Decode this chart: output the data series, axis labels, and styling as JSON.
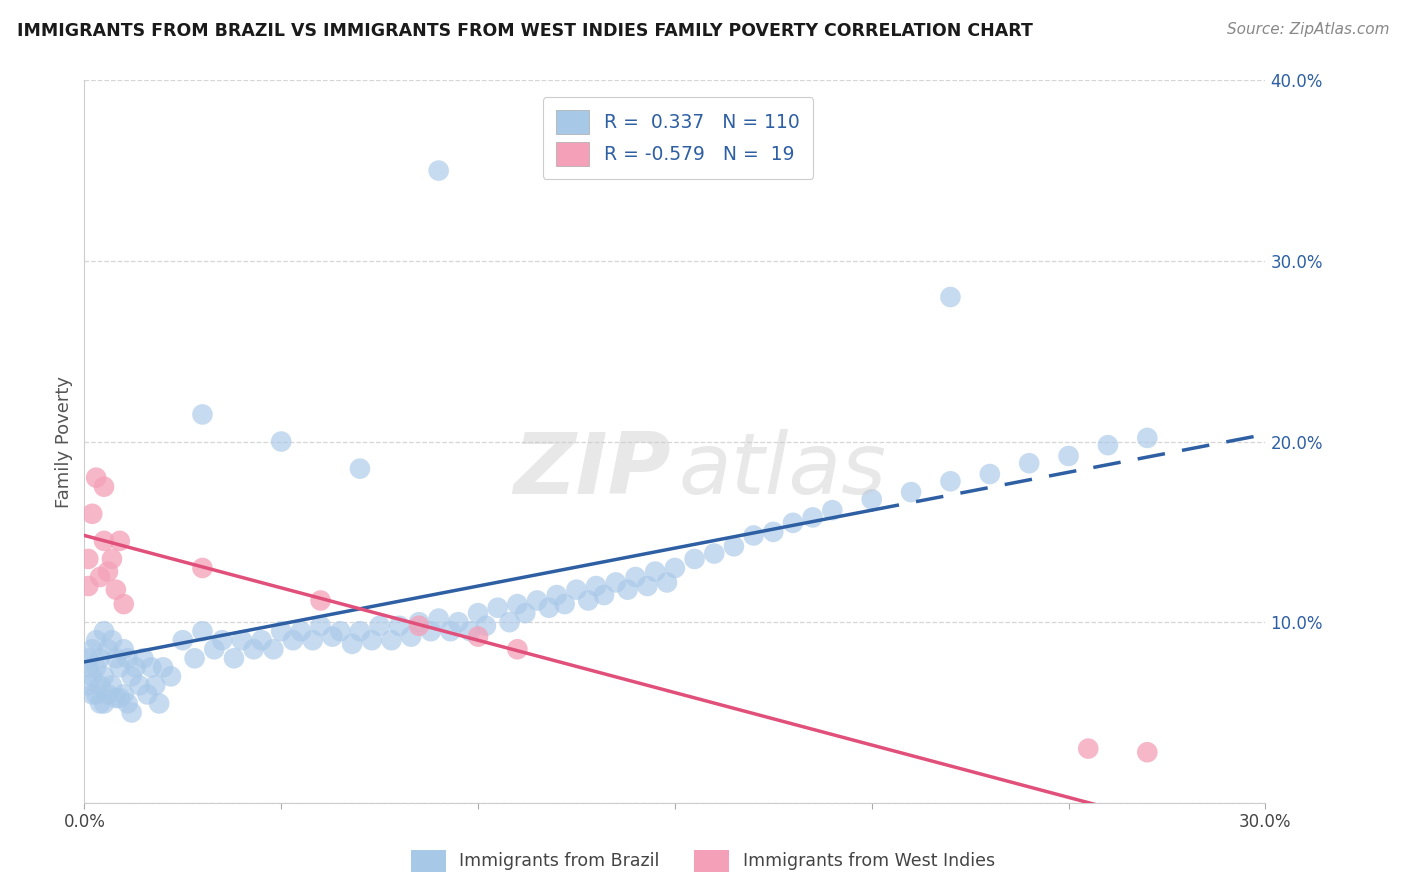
{
  "title": "IMMIGRANTS FROM BRAZIL VS IMMIGRANTS FROM WEST INDIES FAMILY POVERTY CORRELATION CHART",
  "source": "Source: ZipAtlas.com",
  "ylabel": "Family Poverty",
  "xlim": [
    0.0,
    0.3
  ],
  "ylim": [
    0.0,
    0.4
  ],
  "brazil_color": "#a8c8e8",
  "west_indies_color": "#f4a0b8",
  "brazil_R": 0.337,
  "brazil_N": 110,
  "west_indies_R": -0.579,
  "west_indies_N": 19,
  "brazil_line_color": "#2e5fa3",
  "west_indies_line_color": "#e0507a",
  "legend_label_brazil": "Immigrants from Brazil",
  "legend_label_west_indies": "Immigrants from West Indies",
  "background_color": "#ffffff",
  "brazil_line_intercept": 0.078,
  "brazil_line_slope": 0.42,
  "west_indies_line_intercept": 0.148,
  "west_indies_line_slope": -0.58,
  "brazil_x": [
    0.001,
    0.001,
    0.001,
    0.002,
    0.002,
    0.002,
    0.003,
    0.003,
    0.003,
    0.004,
    0.004,
    0.004,
    0.005,
    0.005,
    0.005,
    0.006,
    0.006,
    0.007,
    0.007,
    0.008,
    0.008,
    0.009,
    0.009,
    0.01,
    0.01,
    0.011,
    0.011,
    0.012,
    0.012,
    0.013,
    0.014,
    0.015,
    0.016,
    0.017,
    0.018,
    0.019,
    0.02,
    0.022,
    0.025,
    0.028,
    0.03,
    0.033,
    0.035,
    0.038,
    0.04,
    0.043,
    0.045,
    0.048,
    0.05,
    0.053,
    0.055,
    0.058,
    0.06,
    0.063,
    0.065,
    0.068,
    0.07,
    0.073,
    0.075,
    0.078,
    0.08,
    0.083,
    0.085,
    0.088,
    0.09,
    0.093,
    0.095,
    0.098,
    0.1,
    0.102,
    0.105,
    0.108,
    0.11,
    0.112,
    0.115,
    0.118,
    0.12,
    0.122,
    0.125,
    0.128,
    0.13,
    0.132,
    0.135,
    0.138,
    0.14,
    0.143,
    0.145,
    0.148,
    0.15,
    0.155,
    0.16,
    0.165,
    0.17,
    0.175,
    0.18,
    0.185,
    0.19,
    0.2,
    0.21,
    0.22,
    0.23,
    0.24,
    0.25,
    0.26,
    0.27,
    0.09,
    0.03,
    0.05,
    0.07,
    0.22
  ],
  "brazil_y": [
    0.08,
    0.075,
    0.065,
    0.085,
    0.07,
    0.06,
    0.09,
    0.075,
    0.06,
    0.08,
    0.065,
    0.055,
    0.095,
    0.07,
    0.055,
    0.085,
    0.06,
    0.09,
    0.065,
    0.08,
    0.058,
    0.075,
    0.058,
    0.085,
    0.06,
    0.08,
    0.055,
    0.07,
    0.05,
    0.075,
    0.065,
    0.08,
    0.06,
    0.075,
    0.065,
    0.055,
    0.075,
    0.07,
    0.09,
    0.08,
    0.095,
    0.085,
    0.09,
    0.08,
    0.09,
    0.085,
    0.09,
    0.085,
    0.095,
    0.09,
    0.095,
    0.09,
    0.098,
    0.092,
    0.095,
    0.088,
    0.095,
    0.09,
    0.098,
    0.09,
    0.098,
    0.092,
    0.1,
    0.095,
    0.102,
    0.095,
    0.1,
    0.095,
    0.105,
    0.098,
    0.108,
    0.1,
    0.11,
    0.105,
    0.112,
    0.108,
    0.115,
    0.11,
    0.118,
    0.112,
    0.12,
    0.115,
    0.122,
    0.118,
    0.125,
    0.12,
    0.128,
    0.122,
    0.13,
    0.135,
    0.138,
    0.142,
    0.148,
    0.15,
    0.155,
    0.158,
    0.162,
    0.168,
    0.172,
    0.178,
    0.182,
    0.188,
    0.192,
    0.198,
    0.202,
    0.35,
    0.215,
    0.2,
    0.185,
    0.28
  ],
  "wi_x": [
    0.001,
    0.001,
    0.002,
    0.003,
    0.004,
    0.005,
    0.005,
    0.006,
    0.007,
    0.008,
    0.009,
    0.01,
    0.03,
    0.06,
    0.085,
    0.1,
    0.11,
    0.255,
    0.27
  ],
  "wi_y": [
    0.135,
    0.12,
    0.16,
    0.18,
    0.125,
    0.145,
    0.175,
    0.128,
    0.135,
    0.118,
    0.145,
    0.11,
    0.13,
    0.112,
    0.098,
    0.092,
    0.085,
    0.03,
    0.028
  ]
}
